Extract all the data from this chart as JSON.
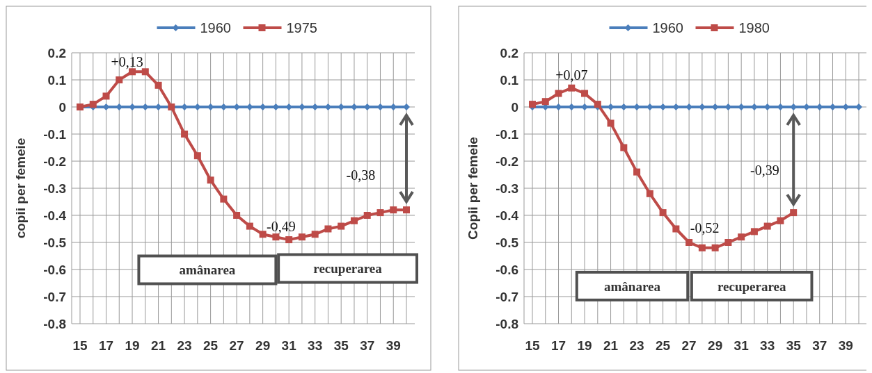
{
  "chart_data": [
    {
      "type": "line",
      "ylabel": "copii per femeie",
      "categories": [
        "15",
        null,
        "17",
        null,
        "19",
        null,
        "21",
        null,
        "23",
        null,
        "25",
        null,
        "27",
        null,
        "29",
        null,
        "31",
        null,
        "33",
        null,
        "35",
        null,
        "37",
        null,
        "39",
        null
      ],
      "series": [
        {
          "name": "1960",
          "color": "#4a7ebb",
          "marker": "diamond",
          "values": [
            0,
            0,
            0,
            0,
            0,
            0,
            0,
            0,
            0,
            0,
            0,
            0,
            0,
            0,
            0,
            0,
            0,
            0,
            0,
            0,
            0,
            0,
            0,
            0,
            0,
            0
          ]
        },
        {
          "name": "1975",
          "color": "#be4b48",
          "marker": "square",
          "values": [
            0,
            0.01,
            0.04,
            0.1,
            0.13,
            0.13,
            0.08,
            0,
            -0.1,
            -0.18,
            -0.27,
            -0.34,
            -0.4,
            -0.44,
            -0.47,
            -0.48,
            -0.49,
            -0.48,
            -0.47,
            -0.45,
            -0.44,
            -0.42,
            -0.4,
            -0.39,
            -0.38,
            -0.38
          ]
        }
      ],
      "ylim": [
        -0.8,
        0.2
      ],
      "yticks": [
        -0.8,
        -0.7,
        -0.6,
        -0.5,
        -0.4,
        -0.3,
        -0.2,
        -0.1,
        0,
        0.1,
        0.2
      ],
      "grid": true,
      "legend": "top",
      "annotations": [
        "+0,13",
        "-0,49",
        "-0,38",
        "amânarea",
        "recuperarea"
      ]
    },
    {
      "type": "line",
      "ylabel": "Copii per femeie",
      "categories": [
        "15",
        null,
        "17",
        null,
        "19",
        null,
        "21",
        null,
        "23",
        null,
        "25",
        null,
        "27",
        null,
        "29",
        null,
        "31",
        null,
        "33",
        null,
        "35",
        null,
        "37",
        null,
        "39",
        null
      ],
      "series": [
        {
          "name": "1960",
          "color": "#4a7ebb",
          "marker": "diamond",
          "values": [
            0,
            0,
            0,
            0,
            0,
            0,
            0,
            0,
            0,
            0,
            0,
            0,
            0,
            0,
            0,
            0,
            0,
            0,
            0,
            0,
            0,
            0,
            0,
            0,
            0,
            0
          ]
        },
        {
          "name": "1980",
          "color": "#be4b48",
          "marker": "square",
          "values": [
            0.01,
            0.02,
            0.05,
            0.07,
            0.05,
            0.01,
            -0.06,
            -0.15,
            -0.24,
            -0.32,
            -0.39,
            -0.45,
            -0.5,
            -0.52,
            -0.52,
            -0.5,
            -0.48,
            -0.46,
            -0.44,
            -0.42,
            -0.39,
            null,
            null,
            null,
            null,
            null
          ]
        }
      ],
      "ylim": [
        -0.8,
        0.2
      ],
      "yticks": [
        -0.8,
        -0.7,
        -0.6,
        -0.5,
        -0.4,
        -0.3,
        -0.2,
        -0.1,
        0,
        0.1,
        0.2
      ],
      "grid": true,
      "legend": "top",
      "annotations": [
        "+0,07",
        "-0,52",
        "-0,39",
        "amânarea",
        "recuperarea"
      ]
    }
  ]
}
